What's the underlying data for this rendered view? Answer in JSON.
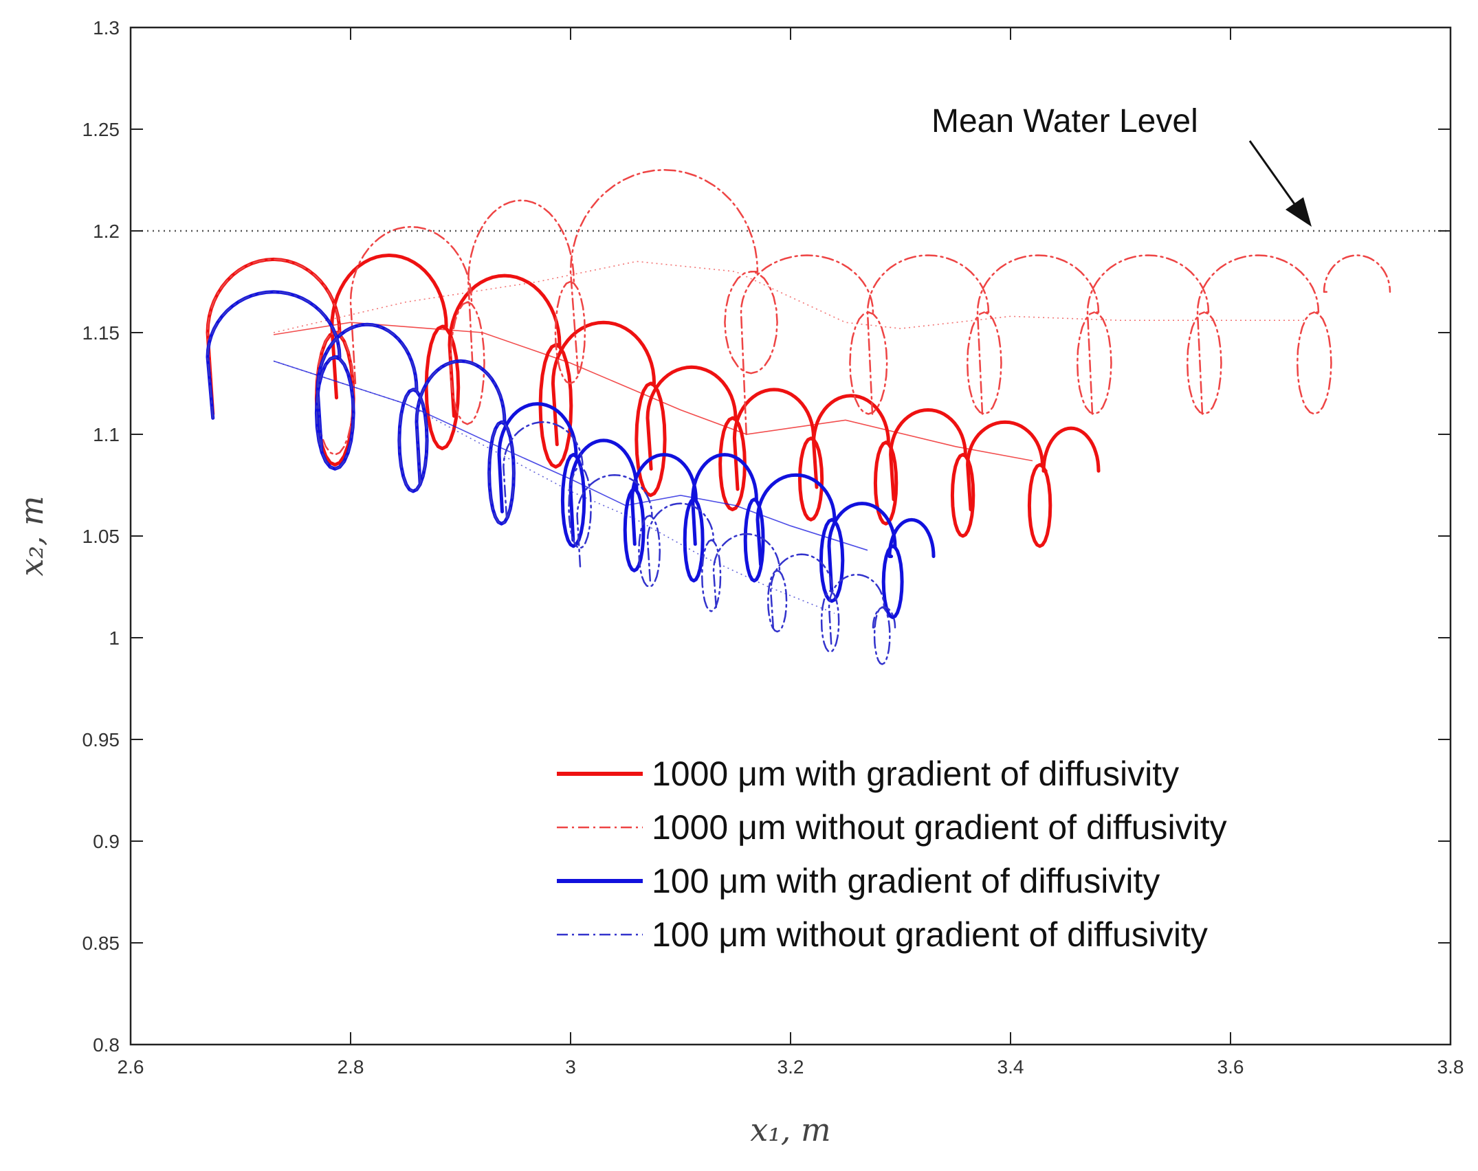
{
  "chart_data": {
    "type": "line",
    "title": "",
    "xlabel": "x₁, m",
    "ylabel": "x₂, m",
    "xlim": [
      2.6,
      3.8
    ],
    "ylim": [
      0.8,
      1.3
    ],
    "xticks": [
      2.6,
      2.8,
      3,
      3.2,
      3.4,
      3.6,
      3.8
    ],
    "xtick_labels": [
      "2.6",
      "2.8",
      "3",
      "3.2",
      "3.4",
      "3.6",
      "3.8"
    ],
    "yticks": [
      0.8,
      0.85,
      0.9,
      0.95,
      1,
      1.05,
      1.1,
      1.15,
      1.2,
      1.25,
      1.3
    ],
    "ytick_labels": [
      "0.8",
      "0.85",
      "0.9",
      "0.95",
      "1",
      "1.05",
      "1.1",
      "1.15",
      "1.2",
      "1.25",
      "1.3"
    ],
    "grid": false,
    "legend_position": "bottom-right",
    "annotation": {
      "text": "Mean Water Level",
      "y": 1.2,
      "arrow_to": [
        3.67,
        1.2
      ]
    },
    "reference_line": {
      "name": "Mean Water Level",
      "y": 1.2,
      "x_range": [
        2.61,
        3.8
      ],
      "color": "#555555",
      "style": "dotted"
    },
    "series": [
      {
        "name": "1000 μm with gradient of diffusivity",
        "legend_label": "1000 μm with gradient of diffusivity",
        "color": "#ee1111",
        "style": "solid",
        "linewidth": 5,
        "loops": [
          {
            "cx": 2.73,
            "cy": 1.15,
            "rx": 0.06,
            "ry": 0.036,
            "left_drop": 0.04,
            "right_drop": 0.065
          },
          {
            "cx": 2.835,
            "cy": 1.153,
            "rx": 0.052,
            "ry": 0.035,
            "left_drop": 0.035,
            "right_drop": 0.06
          },
          {
            "cx": 2.94,
            "cy": 1.144,
            "rx": 0.05,
            "ry": 0.034,
            "left_drop": 0.035,
            "right_drop": 0.06
          },
          {
            "cx": 3.03,
            "cy": 1.125,
            "rx": 0.046,
            "ry": 0.03,
            "left_drop": 0.03,
            "right_drop": 0.055
          },
          {
            "cx": 3.11,
            "cy": 1.108,
            "rx": 0.04,
            "ry": 0.025,
            "left_drop": 0.025,
            "right_drop": 0.045
          },
          {
            "cx": 3.185,
            "cy": 1.098,
            "rx": 0.036,
            "ry": 0.024,
            "left_drop": 0.025,
            "right_drop": 0.04
          },
          {
            "cx": 3.255,
            "cy": 1.096,
            "rx": 0.034,
            "ry": 0.023,
            "left_drop": 0.022,
            "right_drop": 0.04
          },
          {
            "cx": 3.325,
            "cy": 1.09,
            "rx": 0.034,
            "ry": 0.022,
            "left_drop": 0.022,
            "right_drop": 0.04
          },
          {
            "cx": 3.395,
            "cy": 1.085,
            "rx": 0.034,
            "ry": 0.021,
            "left_drop": 0.022,
            "right_drop": 0.04
          },
          {
            "cx": 3.455,
            "cy": 1.082,
            "rx": 0.025,
            "ry": 0.021,
            "left_drop": 0.0,
            "right_drop": 0.0
          }
        ],
        "trend": [
          [
            2.73,
            1.149
          ],
          [
            2.8,
            1.155
          ],
          [
            2.92,
            1.15
          ],
          [
            3.0,
            1.135
          ],
          [
            3.1,
            1.112
          ],
          [
            3.16,
            1.1
          ],
          [
            3.25,
            1.107
          ],
          [
            3.35,
            1.094
          ],
          [
            3.42,
            1.087
          ]
        ]
      },
      {
        "name": "1000 μm without gradient of diffusivity",
        "legend_label": "1000 μm without gradient of diffusivity",
        "color": "#ee4444",
        "style": "dashdot",
        "linewidth": 2.5,
        "loops": [
          {
            "cx": 2.73,
            "cy": 1.15,
            "rx": 0.06,
            "ry": 0.036,
            "left_drop": 0.04,
            "right_drop": 0.06
          },
          {
            "cx": 2.855,
            "cy": 1.165,
            "rx": 0.055,
            "ry": 0.037,
            "left_drop": 0.04,
            "right_drop": 0.06
          },
          {
            "cx": 2.955,
            "cy": 1.175,
            "rx": 0.048,
            "ry": 0.04,
            "left_drop": 0.04,
            "right_drop": 0.05
          },
          {
            "cx": 3.085,
            "cy": 1.18,
            "rx": 0.085,
            "ry": 0.05,
            "left_drop": 0.05,
            "right_drop": 0.05
          },
          {
            "cx": 3.215,
            "cy": 1.16,
            "rx": 0.06,
            "ry": 0.028,
            "left_drop": 0.06,
            "right_drop": 0.05
          },
          {
            "cx": 3.325,
            "cy": 1.16,
            "rx": 0.055,
            "ry": 0.028,
            "left_drop": 0.05,
            "right_drop": 0.05
          },
          {
            "cx": 3.425,
            "cy": 1.16,
            "rx": 0.055,
            "ry": 0.028,
            "left_drop": 0.05,
            "right_drop": 0.05
          },
          {
            "cx": 3.525,
            "cy": 1.16,
            "rx": 0.055,
            "ry": 0.028,
            "left_drop": 0.05,
            "right_drop": 0.05
          },
          {
            "cx": 3.625,
            "cy": 1.16,
            "rx": 0.055,
            "ry": 0.028,
            "left_drop": 0.05,
            "right_drop": 0.05
          },
          {
            "cx": 3.715,
            "cy": 1.17,
            "rx": 0.03,
            "ry": 0.018,
            "left_drop": 0.0,
            "right_drop": 0.0
          }
        ],
        "trend": [
          [
            2.73,
            1.15
          ],
          [
            2.85,
            1.165
          ],
          [
            2.97,
            1.175
          ],
          [
            3.06,
            1.185
          ],
          [
            3.15,
            1.18
          ],
          [
            3.25,
            1.155
          ],
          [
            3.3,
            1.152
          ],
          [
            3.4,
            1.158
          ],
          [
            3.5,
            1.156
          ],
          [
            3.67,
            1.156
          ]
        ]
      },
      {
        "name": "100 μm with gradient of diffusivity",
        "legend_label": "100 μm  with gradient of diffusivity",
        "color": "#1111dd",
        "style": "solid",
        "linewidth": 5,
        "loops": [
          {
            "cx": 2.73,
            "cy": 1.138,
            "rx": 0.06,
            "ry": 0.032,
            "left_drop": 0.03,
            "right_drop": 0.055
          },
          {
            "cx": 2.815,
            "cy": 1.122,
            "rx": 0.045,
            "ry": 0.032,
            "left_drop": 0.03,
            "right_drop": 0.05
          },
          {
            "cx": 2.9,
            "cy": 1.106,
            "rx": 0.04,
            "ry": 0.03,
            "left_drop": 0.03,
            "right_drop": 0.05
          },
          {
            "cx": 2.97,
            "cy": 1.09,
            "rx": 0.035,
            "ry": 0.025,
            "left_drop": 0.028,
            "right_drop": 0.045
          },
          {
            "cx": 3.03,
            "cy": 1.073,
            "rx": 0.03,
            "ry": 0.024,
            "left_drop": 0.025,
            "right_drop": 0.04
          },
          {
            "cx": 3.085,
            "cy": 1.068,
            "rx": 0.029,
            "ry": 0.022,
            "left_drop": 0.022,
            "right_drop": 0.04
          },
          {
            "cx": 3.14,
            "cy": 1.068,
            "rx": 0.029,
            "ry": 0.022,
            "left_drop": 0.022,
            "right_drop": 0.04
          },
          {
            "cx": 3.205,
            "cy": 1.058,
            "rx": 0.035,
            "ry": 0.022,
            "left_drop": 0.022,
            "right_drop": 0.04
          },
          {
            "cx": 3.265,
            "cy": 1.045,
            "rx": 0.03,
            "ry": 0.021,
            "left_drop": 0.022,
            "right_drop": 0.035
          },
          {
            "cx": 3.31,
            "cy": 1.04,
            "rx": 0.02,
            "ry": 0.018,
            "left_drop": 0.0,
            "right_drop": 0.0
          }
        ],
        "trend": [
          [
            2.73,
            1.136
          ],
          [
            2.85,
            1.115
          ],
          [
            2.93,
            1.095
          ],
          [
            3.0,
            1.078
          ],
          [
            3.05,
            1.065
          ],
          [
            3.1,
            1.07
          ],
          [
            3.15,
            1.065
          ],
          [
            3.2,
            1.055
          ],
          [
            3.27,
            1.043
          ]
        ]
      },
      {
        "name": "100 μm without gradient of diffusivity",
        "legend_label": "100 μm without gradient of diffusivity",
        "color": "#3333cc",
        "style": "dashdot",
        "linewidth": 2.5,
        "loops": [
          {
            "cx": 2.73,
            "cy": 1.138,
            "rx": 0.06,
            "ry": 0.032,
            "left_drop": 0.03,
            "right_drop": 0.055
          },
          {
            "cx": 2.815,
            "cy": 1.122,
            "rx": 0.045,
            "ry": 0.032,
            "left_drop": 0.03,
            "right_drop": 0.05
          },
          {
            "cx": 2.9,
            "cy": 1.106,
            "rx": 0.04,
            "ry": 0.03,
            "left_drop": 0.03,
            "right_drop": 0.05
          },
          {
            "cx": 2.975,
            "cy": 1.084,
            "rx": 0.036,
            "ry": 0.022,
            "left_drop": 0.025,
            "right_drop": 0.04
          },
          {
            "cx": 3.04,
            "cy": 1.06,
            "rx": 0.034,
            "ry": 0.02,
            "left_drop": 0.025,
            "right_drop": 0.035
          },
          {
            "cx": 3.1,
            "cy": 1.048,
            "rx": 0.03,
            "ry": 0.018,
            "left_drop": 0.02,
            "right_drop": 0.035
          },
          {
            "cx": 3.16,
            "cy": 1.033,
            "rx": 0.03,
            "ry": 0.018,
            "left_drop": 0.018,
            "right_drop": 0.03
          },
          {
            "cx": 3.21,
            "cy": 1.023,
            "rx": 0.028,
            "ry": 0.018,
            "left_drop": 0.018,
            "right_drop": 0.03
          },
          {
            "cx": 3.26,
            "cy": 1.015,
            "rx": 0.025,
            "ry": 0.016,
            "left_drop": 0.018,
            "right_drop": 0.028
          },
          {
            "cx": 3.285,
            "cy": 1.005,
            "rx": 0.01,
            "ry": 0.01,
            "left_drop": 0.0,
            "right_drop": 0.0
          }
        ],
        "trend": [
          [
            2.73,
            1.136
          ],
          [
            2.85,
            1.115
          ],
          [
            2.93,
            1.092
          ],
          [
            3.0,
            1.072
          ],
          [
            3.06,
            1.058
          ],
          [
            3.12,
            1.04
          ],
          [
            3.18,
            1.025
          ],
          [
            3.24,
            1.012
          ]
        ]
      }
    ]
  }
}
